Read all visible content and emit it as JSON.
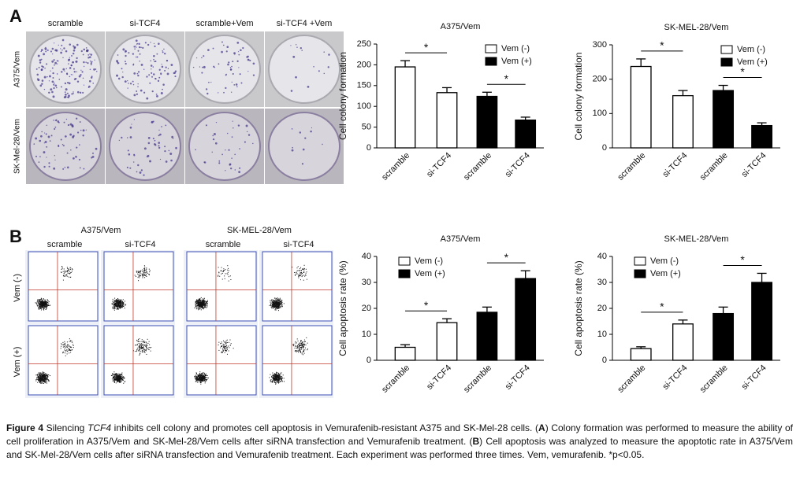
{
  "panel_labels": [
    "A",
    "B"
  ],
  "colony": {
    "columns": [
      "scramble",
      "si-TCF4",
      "scramble+Vem",
      "si-TCF4 +Vem"
    ],
    "rows": [
      "A375/Vem",
      "SK-Mel-28/Vem"
    ]
  },
  "flow": {
    "groups": [
      "A375/Vem",
      "SK-MEL-28/Vem"
    ],
    "columns": [
      "scramble",
      "si-TCF4"
    ],
    "rows": [
      "Vem (-)",
      "Vem (+)"
    ]
  },
  "chart_data": [
    {
      "type": "bar",
      "title": "A375/Vem",
      "y_label": "Cell colony formation",
      "categories": [
        "scramble",
        "si-TCF4"
      ],
      "series": [
        {
          "name": "Vem (-)",
          "color": "#ffffff",
          "values": [
            195,
            133
          ],
          "errors": [
            15,
            12
          ]
        },
        {
          "name": "Vem (+)",
          "color": "#000000",
          "values": [
            124,
            67
          ],
          "errors": [
            10,
            7
          ]
        }
      ],
      "significance": [
        "*",
        "*"
      ],
      "ylim": [
        0,
        250
      ],
      "yticks": [
        0,
        50,
        100,
        150,
        200,
        250
      ],
      "legend": "upper right"
    },
    {
      "type": "bar",
      "title": "SK-MEL-28/Vem",
      "y_label": "Cell colony formation",
      "categories": [
        "scramble",
        "si-TCF4"
      ],
      "series": [
        {
          "name": "Vem (-)",
          "color": "#ffffff",
          "values": [
            237,
            152
          ],
          "errors": [
            22,
            15
          ]
        },
        {
          "name": "Vem (+)",
          "color": "#000000",
          "values": [
            167,
            65
          ],
          "errors": [
            15,
            8
          ]
        }
      ],
      "significance": [
        "*",
        "*"
      ],
      "ylim": [
        0,
        300
      ],
      "yticks": [
        0,
        100,
        200,
        300
      ],
      "legend": "upper right"
    },
    {
      "type": "bar",
      "title": "A375/Vem",
      "y_label": "Cell apoptosis rate (%)",
      "categories": [
        "scramble",
        "si-TCF4"
      ],
      "series": [
        {
          "name": "Vem (-)",
          "color": "#ffffff",
          "values": [
            5,
            14.5
          ],
          "errors": [
            1,
            1.5
          ]
        },
        {
          "name": "Vem (+)",
          "color": "#000000",
          "values": [
            18.5,
            31.5
          ],
          "errors": [
            2,
            3
          ]
        }
      ],
      "significance": [
        "*",
        "*"
      ],
      "ylim": [
        0,
        40
      ],
      "yticks": [
        0,
        10,
        20,
        30,
        40
      ],
      "legend": "upper left"
    },
    {
      "type": "bar",
      "title": "SK-MEL-28/Vem",
      "y_label": "Cell apoptosis rate (%)",
      "categories": [
        "scramble",
        "si-TCF4"
      ],
      "series": [
        {
          "name": "Vem (-)",
          "color": "#ffffff",
          "values": [
            4.5,
            14
          ],
          "errors": [
            0.7,
            1.5
          ]
        },
        {
          "name": "Vem (+)",
          "color": "#000000",
          "values": [
            18,
            30
          ],
          "errors": [
            2.5,
            3.5
          ]
        }
      ],
      "significance": [
        "*",
        "*"
      ],
      "ylim": [
        0,
        40
      ],
      "yticks": [
        0,
        10,
        20,
        30,
        40
      ],
      "legend": "upper left"
    }
  ],
  "caption": {
    "label": "Figure 4",
    "segments": [
      " Silencing ",
      "TCF4",
      " inhibits cell colony and promotes cell apoptosis in Vemurafenib-resistant A375 and SK-Mel-28 cells. (",
      "A",
      ") Colony formation was performed to measure the ability of cell proliferation in A375/Vem and SK-Mel-28/Vem cells after siRNA transfection and Vemurafenib treatment. (",
      "B",
      ") Cell apoptosis was analyzed to measure the apoptotic rate in A375/Vem and SK-Mel-28/Vem cells after siRNA transfection and Vemurafenib treatment. Each experiment was performed three times. Vem, vemurafenib. *p<0.05."
    ]
  }
}
